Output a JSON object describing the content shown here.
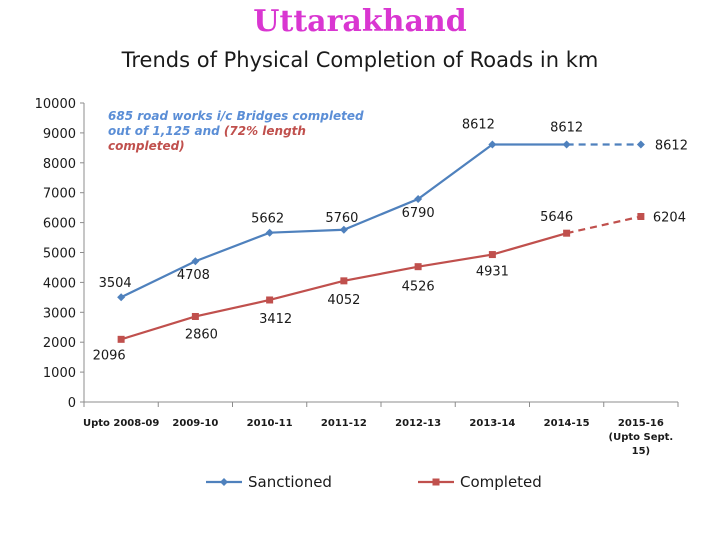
{
  "slide": {
    "title": "Uttarakhand"
  },
  "chart_data": {
    "type": "line",
    "title": "Trends of Physical Completion of Roads in km",
    "categories": [
      "Upto 2008-09",
      "2009-10",
      "2010-11",
      "2011-12",
      "2012-13",
      "2013-14",
      "2014-15",
      "2015-16 (Upto Sept. 15)"
    ],
    "category_lines": [
      [
        "Upto 2008-09"
      ],
      [
        "2009-10"
      ],
      [
        "2010-11"
      ],
      [
        "2011-12"
      ],
      [
        "2012-13"
      ],
      [
        "2013-14"
      ],
      [
        "2014-15"
      ],
      [
        "2015-16",
        "(Upto Sept.",
        "15)"
      ]
    ],
    "ylim": [
      0,
      10000
    ],
    "yticks": [
      0,
      1000,
      2000,
      3000,
      4000,
      5000,
      6000,
      7000,
      8000,
      9000,
      10000
    ],
    "grid": false,
    "legend_position": "bottom",
    "series": [
      {
        "name": "Sanctioned",
        "color": "#4f81bd",
        "marker": "diamond",
        "values": [
          3504,
          4708,
          5662,
          5760,
          6790,
          8612,
          8612,
          8612
        ],
        "labels": [
          "3504",
          "4708",
          "5662",
          "5760",
          "6790",
          "8612",
          "8612",
          "8612"
        ],
        "dashed_last_segment": true
      },
      {
        "name": "Completed",
        "color": "#c0504d",
        "marker": "square",
        "values": [
          2096,
          2860,
          3412,
          4052,
          4526,
          4931,
          5646,
          6204
        ],
        "labels": [
          "2096",
          "2860",
          "3412",
          "4052",
          "4526",
          "4931",
          "5646",
          "6204"
        ],
        "dashed_last_segment": true
      }
    ],
    "annotation": {
      "lines": [
        [
          {
            "text": "685 road works i/c Bridges completed",
            "color": "blue"
          }
        ],
        [
          {
            "text": "out of 1,125 and  ",
            "color": "blue"
          },
          {
            "text": "(72% length",
            "color": "red"
          }
        ],
        [
          {
            "text": "completed)",
            "color": "red"
          }
        ]
      ]
    }
  }
}
